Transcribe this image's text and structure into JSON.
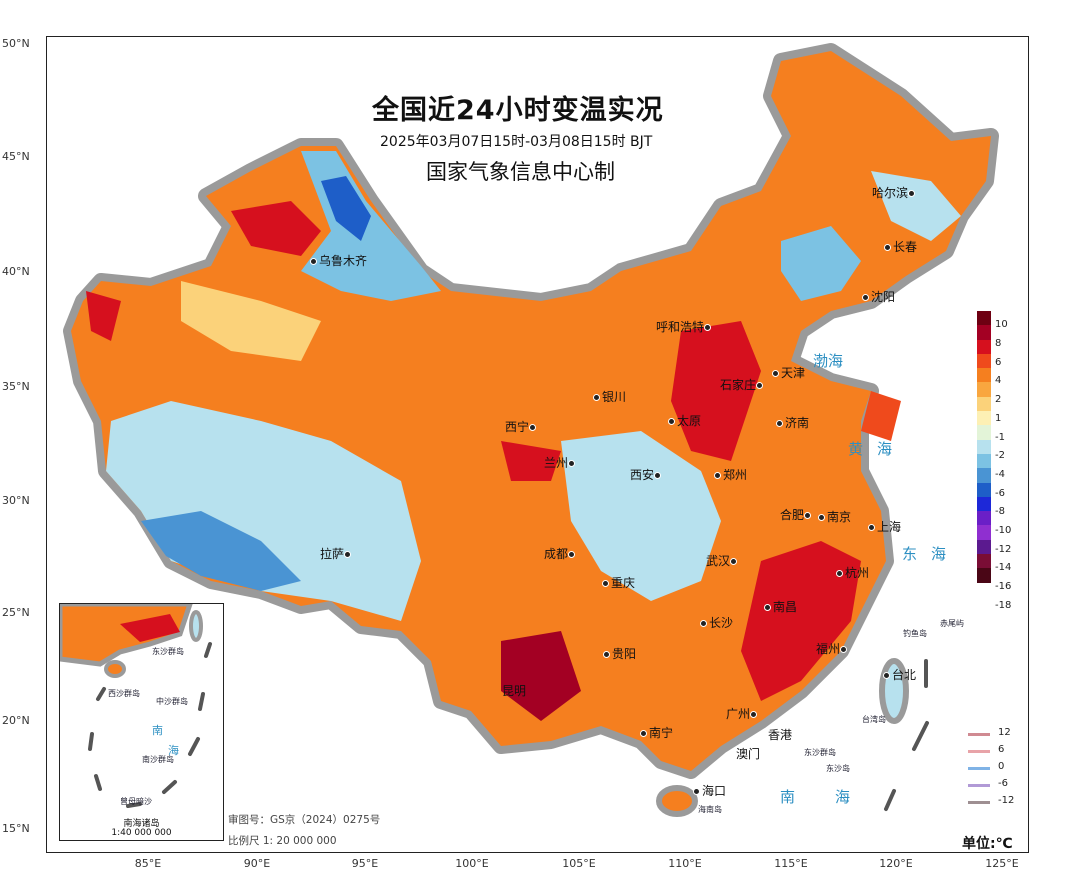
{
  "map": {
    "title": "全国近24小时变温实况",
    "subtitle": "2025年03月07日15时-03月08日15时 BJT",
    "maker": "国家气象信息中心制",
    "approval": "审图号：GS京（2024）0275号",
    "scale": "比例尺 1: 20 000 000",
    "unit": "单位:℃",
    "lat_labels": [
      "50°N",
      "45°N",
      "40°N",
      "35°N",
      "30°N",
      "25°N",
      "20°N",
      "15°N"
    ],
    "lon_labels": [
      "85°E",
      "90°E",
      "95°E",
      "100°E",
      "105°E",
      "110°E",
      "115°E",
      "120°E",
      "125°E"
    ],
    "cities": [
      "乌鲁木齐",
      "哈尔滨",
      "长春",
      "沈阳",
      "呼和浩特",
      "天津",
      "石家庄",
      "银川",
      "太原",
      "济南",
      "西宁",
      "兰州",
      "西安",
      "郑州",
      "合肥",
      "南京",
      "上海",
      "拉萨",
      "成都",
      "武汉",
      "杭州",
      "重庆",
      "南昌",
      "长沙",
      "福州",
      "昆明",
      "贵阳",
      "台北",
      "广州",
      "南宁",
      "香港",
      "澳门",
      "海口"
    ],
    "seas": [
      "渤海",
      "黄海",
      "东海",
      "南海"
    ],
    "islands": [
      "钓鱼岛",
      "赤尾屿",
      "台湾岛",
      "东沙群岛",
      "东沙岛",
      "海南岛"
    ],
    "inset": {
      "title": "南海诸岛",
      "scale": "1:40 000 000",
      "labels": [
        "东沙群岛",
        "西沙群岛",
        "中沙群岛",
        "南沙群岛",
        "南",
        "海",
        "曾母暗沙"
      ]
    }
  },
  "legend": {
    "colorbar_labels": [
      "10",
      "8",
      "6",
      "4",
      "2",
      "1",
      "-1",
      "-2",
      "-4",
      "-6",
      "-8",
      "-10",
      "-12",
      "-14",
      "-16",
      "-18"
    ],
    "colorbar_colors": [
      "#6e0012",
      "#a30023",
      "#d6101e",
      "#ef4a1c",
      "#f57f1f",
      "#f9a63f",
      "#fbd27a",
      "#fdf0b4",
      "#e3f4d8",
      "#b7e1ee",
      "#7cc2e3",
      "#4a94d3",
      "#1e5ec8",
      "#1d28d8",
      "#6a1fc7",
      "#8f2fd0",
      "#5b1a8f",
      "#7a0d35",
      "#4a0616"
    ],
    "lines": [
      {
        "label": "12",
        "color": "#d08a92"
      },
      {
        "label": "6",
        "color": "#e8a3a8"
      },
      {
        "label": "0",
        "color": "#80b3e6"
      },
      {
        "label": "-6",
        "color": "#b19ad6"
      },
      {
        "label": "-12",
        "color": "#9e8f92"
      }
    ]
  }
}
